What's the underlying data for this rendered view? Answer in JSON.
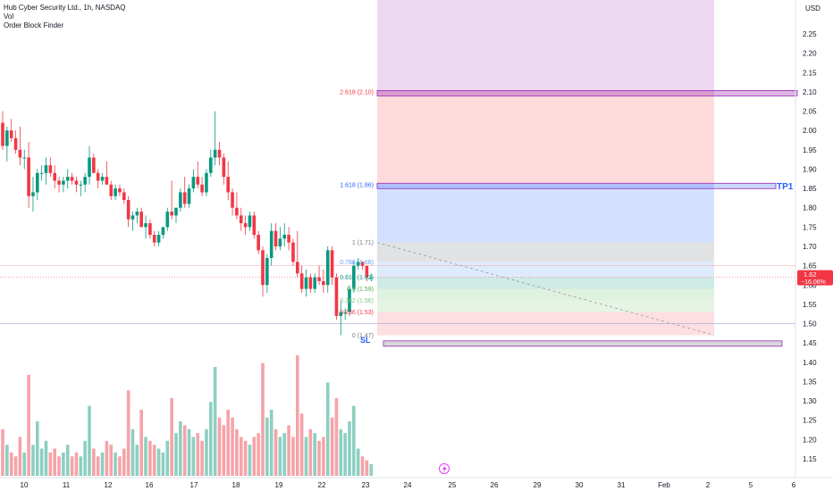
{
  "legend": {
    "symbol": "Hub Cyber Security Ltd., 1h, NASDAQ",
    "vol": "Vol",
    "indicator": "Order Block Finder"
  },
  "currency": "USD",
  "price_ticks": [
    "2.25",
    "2.20",
    "2.15",
    "2.10",
    "2.05",
    "2.00",
    "1.95",
    "1.90",
    "1.85",
    "1.80",
    "1.75",
    "1.70",
    "1.65",
    "1.60",
    "1.55",
    "1.50",
    "1.45",
    "1.40",
    "1.35",
    "1.30",
    "1.25",
    "1.20",
    "1.15"
  ],
  "price_tick_values": [
    2.25,
    2.2,
    2.15,
    2.1,
    2.05,
    2.0,
    1.95,
    1.9,
    1.85,
    1.8,
    1.75,
    1.7,
    1.65,
    1.6,
    1.55,
    1.5,
    1.45,
    1.4,
    1.35,
    1.3,
    1.25,
    1.2,
    1.15
  ],
  "date_ticks": [
    "10",
    "11",
    "12",
    "16",
    "17",
    "18",
    "19",
    "22",
    "23",
    "24",
    "25",
    "26",
    "29",
    "30",
    "31",
    "Feb",
    "2",
    "5",
    "6"
  ],
  "last_price": {
    "value": "1.62",
    "change": "−16.06%",
    "color": "#f23645"
  },
  "fib_levels": [
    {
      "label": "2.618 (2.10)",
      "price": 2.1,
      "color": "#f23645"
    },
    {
      "label": "1.618 (1.86)",
      "price": 1.86,
      "color": "#2962ff"
    },
    {
      "label": "1 (1.71)",
      "price": 1.71,
      "color": "#787b86"
    },
    {
      "label": "0.786 (1.66)",
      "price": 1.66,
      "color": "#5b9cf6"
    },
    {
      "label": "0.618 (1.62)",
      "price": 1.62,
      "color": "#089981"
    },
    {
      "label": "0.5 (1.59)",
      "price": 1.59,
      "color": "#4caf50"
    },
    {
      "label": "0.382 (1.56)",
      "price": 1.56,
      "color": "#81c784"
    },
    {
      "label": "0.236 (1.53)",
      "price": 1.53,
      "color": "#f23645"
    },
    {
      "label": "0 (1.47)",
      "price": 1.47,
      "color": "#787b86"
    }
  ],
  "tp_label": "TP1",
  "sl_label": "SL",
  "colors": {
    "up": "#089981",
    "down": "#f23645",
    "vol_up": "#8ccfc1",
    "vol_down": "#f5a3a8",
    "label_blue": "#2962ff"
  },
  "chart_data": {
    "type": "candlestick",
    "x_axis": "date",
    "price_range": [
      1.11,
      2.3
    ],
    "candles": [
      [
        2.02,
        2.05,
        1.95,
        1.96
      ],
      [
        1.96,
        2.01,
        1.92,
        2.0
      ],
      [
        2.0,
        2.03,
        1.97,
        1.98
      ],
      [
        1.98,
        2.0,
        1.94,
        1.95
      ],
      [
        1.95,
        2.01,
        1.91,
        1.93
      ],
      [
        1.93,
        1.95,
        1.9,
        1.93
      ],
      [
        1.93,
        1.97,
        1.8,
        1.83
      ],
      [
        1.83,
        1.88,
        1.79,
        1.84
      ],
      [
        1.84,
        1.9,
        1.82,
        1.89
      ],
      [
        1.89,
        1.91,
        1.87,
        1.89
      ],
      [
        1.89,
        1.93,
        1.86,
        1.91
      ],
      [
        1.91,
        1.93,
        1.88,
        1.89
      ],
      [
        1.89,
        1.91,
        1.85,
        1.87
      ],
      [
        1.87,
        1.88,
        1.84,
        1.86
      ],
      [
        1.86,
        1.88,
        1.84,
        1.87
      ],
      [
        1.87,
        1.9,
        1.85,
        1.88
      ],
      [
        1.88,
        1.89,
        1.86,
        1.87
      ],
      [
        1.87,
        1.88,
        1.84,
        1.86
      ],
      [
        1.86,
        1.87,
        1.83,
        1.86
      ],
      [
        1.86,
        1.89,
        1.84,
        1.88
      ],
      [
        1.88,
        1.96,
        1.86,
        1.93
      ],
      [
        1.93,
        1.94,
        1.89,
        1.89
      ],
      [
        1.89,
        1.9,
        1.85,
        1.87
      ],
      [
        1.87,
        1.89,
        1.86,
        1.88
      ],
      [
        1.88,
        1.92,
        1.86,
        1.86
      ],
      [
        1.86,
        1.87,
        1.82,
        1.83
      ],
      [
        1.83,
        1.86,
        1.82,
        1.85
      ],
      [
        1.85,
        1.86,
        1.83,
        1.84
      ],
      [
        1.84,
        1.85,
        1.81,
        1.82
      ],
      [
        1.82,
        1.83,
        1.75,
        1.77
      ],
      [
        1.77,
        1.79,
        1.74,
        1.78
      ],
      [
        1.78,
        1.8,
        1.76,
        1.79
      ],
      [
        1.79,
        1.8,
        1.75,
        1.75
      ],
      [
        1.75,
        1.78,
        1.72,
        1.76
      ],
      [
        1.76,
        1.77,
        1.72,
        1.73
      ],
      [
        1.73,
        1.74,
        1.7,
        1.71
      ],
      [
        1.71,
        1.74,
        1.7,
        1.73
      ],
      [
        1.73,
        1.75,
        1.72,
        1.75
      ],
      [
        1.75,
        1.8,
        1.74,
        1.79
      ],
      [
        1.79,
        1.87,
        1.77,
        1.78
      ],
      [
        1.78,
        1.8,
        1.76,
        1.8
      ],
      [
        1.8,
        1.85,
        1.79,
        1.84
      ],
      [
        1.84,
        1.88,
        1.8,
        1.81
      ],
      [
        1.81,
        1.86,
        1.8,
        1.85
      ],
      [
        1.85,
        1.9,
        1.84,
        1.88
      ],
      [
        1.88,
        1.92,
        1.85,
        1.86
      ],
      [
        1.86,
        1.88,
        1.83,
        1.84
      ],
      [
        1.84,
        1.9,
        1.83,
        1.89
      ],
      [
        1.89,
        1.95,
        1.88,
        1.93
      ],
      [
        1.93,
        2.05,
        1.91,
        1.95
      ],
      [
        1.95,
        1.97,
        1.91,
        1.93
      ],
      [
        1.93,
        1.94,
        1.86,
        1.88
      ],
      [
        1.88,
        1.92,
        1.82,
        1.84
      ],
      [
        1.84,
        1.85,
        1.78,
        1.8
      ],
      [
        1.8,
        1.84,
        1.77,
        1.78
      ],
      [
        1.78,
        1.8,
        1.74,
        1.76
      ],
      [
        1.76,
        1.78,
        1.73,
        1.75
      ],
      [
        1.75,
        1.79,
        1.74,
        1.78
      ],
      [
        1.78,
        1.79,
        1.72,
        1.73
      ],
      [
        1.73,
        1.74,
        1.68,
        1.69
      ],
      [
        1.69,
        1.7,
        1.57,
        1.6
      ],
      [
        1.6,
        1.68,
        1.58,
        1.67
      ],
      [
        1.67,
        1.76,
        1.65,
        1.74
      ],
      [
        1.74,
        1.76,
        1.69,
        1.7
      ],
      [
        1.7,
        1.75,
        1.69,
        1.72
      ],
      [
        1.72,
        1.76,
        1.7,
        1.73
      ],
      [
        1.73,
        1.75,
        1.69,
        1.71
      ],
      [
        1.71,
        1.72,
        1.65,
        1.66
      ],
      [
        1.66,
        1.74,
        1.62,
        1.63
      ],
      [
        1.63,
        1.65,
        1.58,
        1.59
      ],
      [
        1.59,
        1.64,
        1.57,
        1.62
      ],
      [
        1.62,
        1.63,
        1.58,
        1.59
      ],
      [
        1.59,
        1.63,
        1.58,
        1.62
      ],
      [
        1.62,
        1.65,
        1.6,
        1.61
      ],
      [
        1.61,
        1.64,
        1.58,
        1.6
      ],
      [
        1.6,
        1.7,
        1.58,
        1.69
      ],
      [
        1.69,
        1.7,
        1.6,
        1.62
      ],
      [
        1.62,
        1.63,
        1.51,
        1.52
      ],
      [
        1.52,
        1.56,
        1.47,
        1.53
      ],
      [
        1.53,
        1.54,
        1.51,
        1.53
      ],
      [
        1.53,
        1.6,
        1.52,
        1.59
      ],
      [
        1.59,
        1.66,
        1.58,
        1.65
      ],
      [
        1.65,
        1.67,
        1.64,
        1.66
      ],
      [
        1.66,
        1.66,
        1.64,
        1.65
      ],
      [
        1.65,
        1.65,
        1.61,
        1.62
      ],
      [
        1.62,
        1.63,
        1.61,
        1.62
      ]
    ],
    "volume": [
      0.12,
      0.08,
      0.06,
      0.05,
      0.1,
      0.06,
      0.26,
      0.08,
      0.14,
      0.07,
      0.09,
      0.06,
      0.07,
      0.05,
      0.06,
      0.08,
      0.05,
      0.06,
      0.05,
      0.09,
      0.18,
      0.07,
      0.05,
      0.06,
      0.09,
      0.08,
      0.06,
      0.05,
      0.07,
      0.22,
      0.12,
      0.08,
      0.17,
      0.1,
      0.09,
      0.08,
      0.07,
      0.06,
      0.09,
      0.2,
      0.11,
      0.14,
      0.13,
      0.12,
      0.1,
      0.11,
      0.09,
      0.12,
      0.19,
      0.28,
      0.15,
      0.13,
      0.17,
      0.15,
      0.12,
      0.1,
      0.09,
      0.08,
      0.1,
      0.11,
      0.29,
      0.15,
      0.17,
      0.12,
      0.1,
      0.11,
      0.13,
      0.1,
      0.31,
      0.16,
      0.1,
      0.12,
      0.11,
      0.09,
      0.1,
      0.24,
      0.15,
      0.2,
      0.12,
      0.11,
      0.14,
      0.18,
      0.07,
      0.05,
      0.04,
      0.03
    ],
    "volume_range": [
      0,
      0.31
    ]
  }
}
